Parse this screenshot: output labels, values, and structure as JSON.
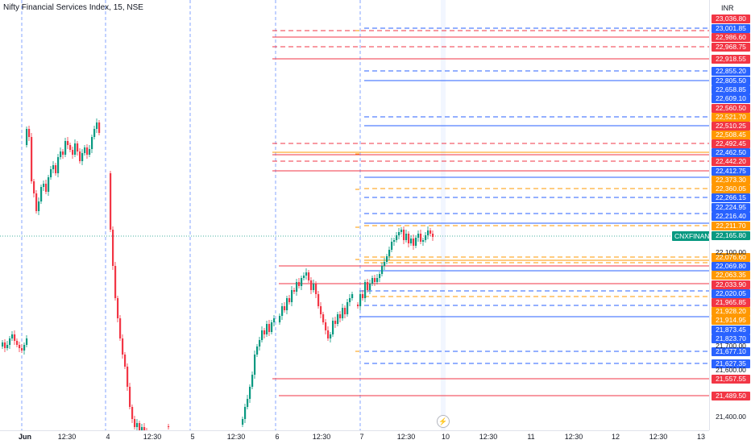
{
  "title": "Nifty Financial Services Index, 15, NSE",
  "currency": "INR",
  "symbol_tag": "CNXFINANCE",
  "lightning_icon": "lightning-icon",
  "colors": {
    "up": "#089981",
    "down": "#f23645",
    "blue": "#2962ff",
    "orange": "#ff9800",
    "red": "#f23645"
  },
  "time_labels": [
    {
      "text": "Jun",
      "bold": true
    },
    {
      "text": "12:30"
    },
    {
      "text": "4"
    },
    {
      "text": "12:30"
    },
    {
      "text": "5"
    },
    {
      "text": "12:30"
    },
    {
      "text": "6"
    },
    {
      "text": "12:30"
    },
    {
      "text": "7"
    },
    {
      "text": "12:30"
    },
    {
      "text": "10"
    },
    {
      "text": "12:30"
    },
    {
      "text": "11"
    },
    {
      "text": "12:30"
    },
    {
      "text": "12"
    },
    {
      "text": "12:30"
    },
    {
      "text": "13"
    }
  ],
  "price_ticks": [
    "22,100.00",
    "21,700.00",
    "21,600.00",
    "21,400.00"
  ],
  "price_labels": [
    {
      "text": "23,036.80",
      "color": "red"
    },
    {
      "text": "23,001.85",
      "color": "blue"
    },
    {
      "text": "22,986.60",
      "color": "red"
    },
    {
      "text": "22,968.75",
      "color": "red"
    },
    {
      "text": "22,918.55",
      "color": "red"
    },
    {
      "text": "22,855.20",
      "color": "blue"
    },
    {
      "text": "22,805.50",
      "color": "blue"
    },
    {
      "text": "22,658.85",
      "color": "blue"
    },
    {
      "text": "22,609.10",
      "color": "blue"
    },
    {
      "text": "22,560.50",
      "color": "red"
    },
    {
      "text": "22,521.70",
      "color": "orange"
    },
    {
      "text": "22,510.25",
      "color": "red"
    },
    {
      "text": "22,508.45",
      "color": "orange"
    },
    {
      "text": "22,492.45",
      "color": "red"
    },
    {
      "text": "22,462.50",
      "color": "blue"
    },
    {
      "text": "22,442.20",
      "color": "red"
    },
    {
      "text": "22,412.75",
      "color": "blue"
    },
    {
      "text": "22,373.30",
      "color": "orange"
    },
    {
      "text": "22,360.05",
      "color": "orange"
    },
    {
      "text": "22,266.15",
      "color": "blue"
    },
    {
      "text": "22,224.95",
      "color": "blue"
    },
    {
      "text": "22,216.40",
      "color": "blue"
    },
    {
      "text": "22,211.70",
      "color": "orange"
    },
    {
      "text": "22,165.80",
      "color": "green"
    },
    {
      "text": "22,076.60",
      "color": "orange"
    },
    {
      "text": "22,069.80",
      "color": "blue"
    },
    {
      "text": "22,063.35",
      "color": "orange"
    },
    {
      "text": "22,033.90",
      "color": "red"
    },
    {
      "text": "21,965.85",
      "color": "red"
    },
    {
      "text": "22,020.05",
      "color": "blue"
    },
    {
      "text": "21,928.20",
      "color": "orange"
    },
    {
      "text": "21,914.95",
      "color": "orange"
    },
    {
      "text": "21,873.45",
      "color": "blue"
    },
    {
      "text": "21,823.70",
      "color": "blue"
    },
    {
      "text": "21,677.10",
      "color": "blue"
    },
    {
      "text": "21,627.35",
      "color": "blue"
    },
    {
      "text": "21,557.55",
      "color": "red"
    },
    {
      "text": "21,489.50",
      "color": "red"
    }
  ]
}
